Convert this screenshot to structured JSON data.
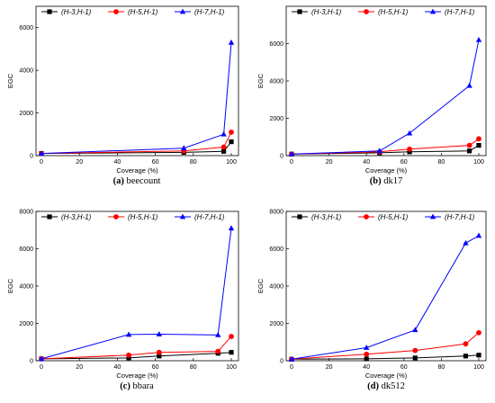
{
  "chart_data": [
    {
      "type": "line",
      "caption": {
        "letter": "(a)",
        "name": "beecount"
      },
      "xlabel": "Coverage (%)",
      "ylabel": "EGC",
      "xlim": [
        0,
        100
      ],
      "ylim": [
        0,
        7000
      ],
      "xticks": [
        0,
        20,
        40,
        60,
        80,
        100
      ],
      "yticks": [
        0,
        2000,
        4000,
        6000
      ],
      "legend_position": "top",
      "grid": false,
      "series": [
        {
          "name": "(H-3,H-1)",
          "color": "#000000",
          "marker": "square",
          "x": [
            0,
            75,
            96,
            100
          ],
          "y": [
            100,
            150,
            200,
            650
          ]
        },
        {
          "name": "(H-5,H-1)",
          "color": "#ff0000",
          "marker": "circle",
          "x": [
            0,
            75,
            96,
            100
          ],
          "y": [
            100,
            220,
            400,
            1100
          ]
        },
        {
          "name": "(H-7,H-1)",
          "color": "#0000ff",
          "marker": "triangle",
          "x": [
            0,
            75,
            96,
            100
          ],
          "y": [
            100,
            350,
            1000,
            5300
          ]
        }
      ]
    },
    {
      "type": "line",
      "caption": {
        "letter": "(b)",
        "name": "dk17"
      },
      "xlabel": "Coverage (%)",
      "ylabel": "EGC",
      "xlim": [
        0,
        100
      ],
      "ylim": [
        0,
        8000
      ],
      "xticks": [
        0,
        20,
        40,
        60,
        80,
        100
      ],
      "yticks": [
        0,
        2000,
        4000,
        6000
      ],
      "legend_position": "top",
      "grid": false,
      "series": [
        {
          "name": "(H-3,H-1)",
          "color": "#000000",
          "marker": "square",
          "x": [
            0,
            47,
            63,
            95,
            100
          ],
          "y": [
            80,
            150,
            200,
            250,
            550
          ]
        },
        {
          "name": "(H-5,H-1)",
          "color": "#ff0000",
          "marker": "circle",
          "x": [
            0,
            47,
            63,
            95,
            100
          ],
          "y": [
            80,
            200,
            350,
            550,
            900
          ]
        },
        {
          "name": "(H-7,H-1)",
          "color": "#0000ff",
          "marker": "triangle",
          "x": [
            0,
            47,
            63,
            95,
            100
          ],
          "y": [
            80,
            250,
            1200,
            3750,
            6200
          ]
        }
      ]
    },
    {
      "type": "line",
      "caption": {
        "letter": "(c)",
        "name": "bbara"
      },
      "xlabel": "Coverage (%)",
      "ylabel": "EGC",
      "xlim": [
        0,
        100
      ],
      "ylim": [
        0,
        8000
      ],
      "xticks": [
        0,
        20,
        40,
        60,
        80,
        100
      ],
      "yticks": [
        0,
        2000,
        4000,
        6000,
        8000
      ],
      "legend_position": "top",
      "grid": false,
      "series": [
        {
          "name": "(H-3,H-1)",
          "color": "#000000",
          "marker": "square",
          "x": [
            0,
            46,
            62,
            93,
            100
          ],
          "y": [
            100,
            150,
            250,
            400,
            450
          ]
        },
        {
          "name": "(H-5,H-1)",
          "color": "#ff0000",
          "marker": "circle",
          "x": [
            0,
            46,
            62,
            93,
            100
          ],
          "y": [
            100,
            300,
            450,
            500,
            1300
          ]
        },
        {
          "name": "(H-7,H-1)",
          "color": "#0000ff",
          "marker": "triangle",
          "x": [
            0,
            46,
            62,
            93,
            100
          ],
          "y": [
            100,
            1400,
            1420,
            1380,
            7100
          ]
        }
      ]
    },
    {
      "type": "line",
      "caption": {
        "letter": "(d)",
        "name": "dk512"
      },
      "xlabel": "Coverage (%)",
      "ylabel": "EGC",
      "xlim": [
        0,
        100
      ],
      "ylim": [
        0,
        8000
      ],
      "xticks": [
        0,
        20,
        40,
        60,
        80,
        100
      ],
      "yticks": [
        0,
        2000,
        4000,
        6000,
        8000
      ],
      "legend_position": "top",
      "grid": false,
      "series": [
        {
          "name": "(H-3,H-1)",
          "color": "#000000",
          "marker": "square",
          "x": [
            0,
            40,
            66,
            93,
            100
          ],
          "y": [
            80,
            100,
            150,
            250,
            300
          ]
        },
        {
          "name": "(H-5,H-1)",
          "color": "#ff0000",
          "marker": "circle",
          "x": [
            0,
            40,
            66,
            93,
            100
          ],
          "y": [
            80,
            350,
            550,
            900,
            1500
          ]
        },
        {
          "name": "(H-7,H-1)",
          "color": "#0000ff",
          "marker": "triangle",
          "x": [
            0,
            40,
            66,
            93,
            100
          ],
          "y": [
            80,
            700,
            1650,
            6300,
            6700
          ]
        }
      ]
    }
  ]
}
